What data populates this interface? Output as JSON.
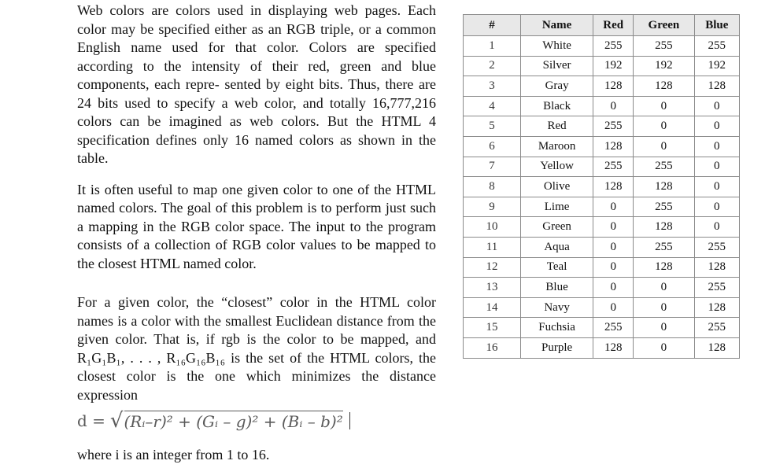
{
  "paragraphs": {
    "p1": "Web colors are colors used in displaying web pages. Each color may be specified either as an RGB triple, or a common English name used for that color. Colors are specified according to the intensity of their red, green and blue components, each repre- sented by eight bits. Thus, there are 24 bits used to specify a web color, and totally 16,777,216 colors can be imagined as web colors. But the HTML 4 specification defines only 16 named colors as shown in the table.",
    "p2": "It is often useful to map one given color to one of the HTML named colors. The goal of this problem is to perform just such a mapping in the RGB color space. The input to the program consists of a collection of RGB color values to be mapped to the closest HTML named color.",
    "p3": "For a given color, the “closest” color in the HTML color names is a color with the smallest Euclidean distance from the given color. That is, if rgb is the color to be mapped, and R₁G₁B₁, . . . , R₁₆G₁₆B₁₆ is the set of the HTML colors, the closest color is the one which minimizes the distance expression",
    "where": "where i is an integer from 1 to 16."
  },
  "formula": {
    "lhs": "d =",
    "radicand": "(Rᵢ–r)² + (Gᵢ – g)² + (Bᵢ – b)²"
  },
  "table": {
    "headers": [
      "#",
      "Name",
      "Red",
      "Green",
      "Blue"
    ],
    "rows": [
      [
        "1",
        "White",
        "255",
        "255",
        "255"
      ],
      [
        "2",
        "Silver",
        "192",
        "192",
        "192"
      ],
      [
        "3",
        "Gray",
        "128",
        "128",
        "128"
      ],
      [
        "4",
        "Black",
        "0",
        "0",
        "0"
      ],
      [
        "5",
        "Red",
        "255",
        "0",
        "0"
      ],
      [
        "6",
        "Maroon",
        "128",
        "0",
        "0"
      ],
      [
        "7",
        "Yellow",
        "255",
        "255",
        "0"
      ],
      [
        "8",
        "Olive",
        "128",
        "128",
        "0"
      ],
      [
        "9",
        "Lime",
        "0",
        "255",
        "0"
      ],
      [
        "10",
        "Green",
        "0",
        "128",
        "0"
      ],
      [
        "11",
        "Aqua",
        "0",
        "255",
        "255"
      ],
      [
        "12",
        "Teal",
        "0",
        "128",
        "128"
      ],
      [
        "13",
        "Blue",
        "0",
        "0",
        "255"
      ],
      [
        "14",
        "Navy",
        "0",
        "0",
        "128"
      ],
      [
        "15",
        "Fuchsia",
        "255",
        "0",
        "255"
      ],
      [
        "16",
        "Purple",
        "128",
        "0",
        "128"
      ]
    ]
  }
}
